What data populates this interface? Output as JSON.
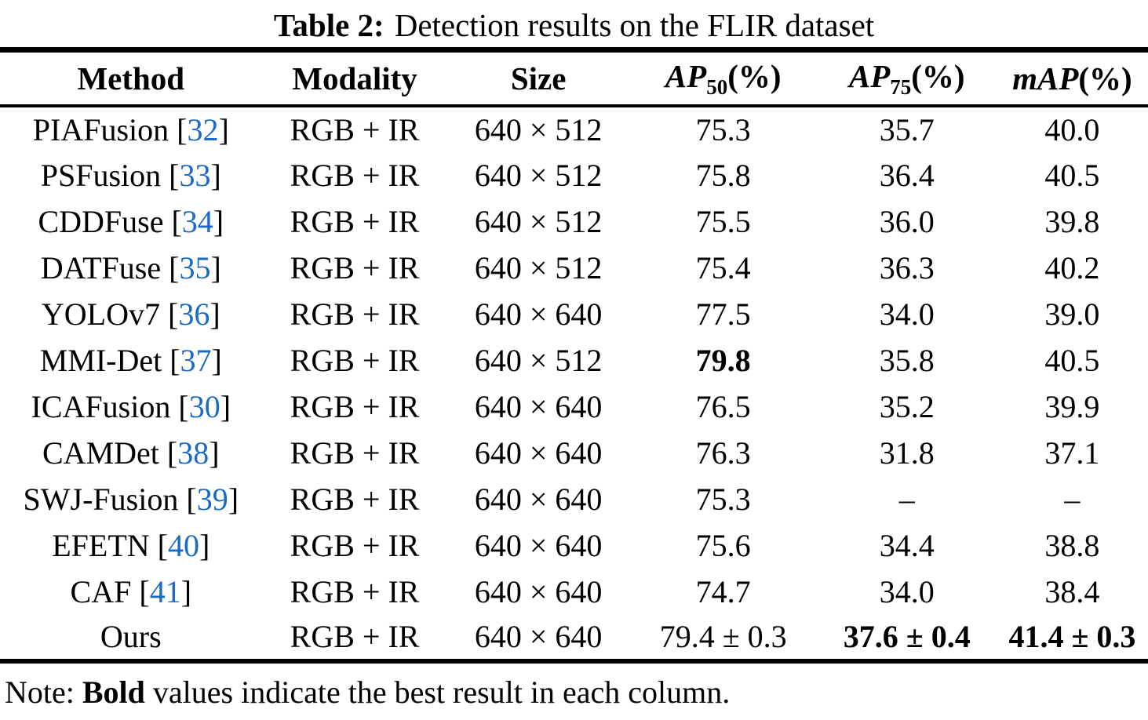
{
  "colors": {
    "citation_blue": "#1a6ac6",
    "text_black": "#000000",
    "background": "#ffffff"
  },
  "caption": {
    "label": "Table 2:",
    "text": "Detection results on the FLIR dataset"
  },
  "table": {
    "citation_brackets": [
      "[",
      "]"
    ],
    "headers": [
      {
        "label": "Method"
      },
      {
        "label": "Modality"
      },
      {
        "label": "Size"
      },
      {
        "label": "AP",
        "sub": "50",
        "suffix": "(%)"
      },
      {
        "label": "AP",
        "sub": "75",
        "suffix": "(%)"
      },
      {
        "label": "mAP",
        "suffix": "(%)"
      }
    ],
    "rows": [
      {
        "method": "PIAFusion",
        "cite": "32",
        "modality": "RGB + IR",
        "size": "640 × 512",
        "ap50": "75.3",
        "ap75": "35.7",
        "map": "40.0"
      },
      {
        "method": "PSFusion",
        "cite": "33",
        "modality": "RGB + IR",
        "size": "640 × 512",
        "ap50": "75.8",
        "ap75": "36.4",
        "map": "40.5"
      },
      {
        "method": "CDDFuse",
        "cite": "34",
        "modality": "RGB + IR",
        "size": "640 × 512",
        "ap50": "75.5",
        "ap75": "36.0",
        "map": "39.8"
      },
      {
        "method": "DATFuse",
        "cite": "35",
        "modality": "RGB + IR",
        "size": "640 × 512",
        "ap50": "75.4",
        "ap75": "36.3",
        "map": "40.2"
      },
      {
        "method": "YOLOv7",
        "cite": "36",
        "modality": "RGB + IR",
        "size": "640 × 640",
        "ap50": "77.5",
        "ap75": "34.0",
        "map": "39.0"
      },
      {
        "method": "MMI-Det",
        "cite": "37",
        "modality": "RGB + IR",
        "size": "640 × 512",
        "ap50": "79.8",
        "ap50_bold": true,
        "ap75": "35.8",
        "map": "40.5"
      },
      {
        "method": "ICAFusion",
        "cite": "30",
        "modality": "RGB + IR",
        "size": "640 × 640",
        "ap50": "76.5",
        "ap75": "35.2",
        "map": "39.9"
      },
      {
        "method": "CAMDet",
        "cite": "38",
        "modality": "RGB + IR",
        "size": "640 × 640",
        "ap50": "76.3",
        "ap75": "31.8",
        "map": "37.1"
      },
      {
        "method": "SWJ-Fusion",
        "cite": "39",
        "modality": "RGB + IR",
        "size": "640 × 640",
        "ap50": "75.3",
        "ap75": "–",
        "map": "–"
      },
      {
        "method": "EFETN",
        "cite": "40",
        "modality": "RGB + IR",
        "size": "640 × 640",
        "ap50": "75.6",
        "ap75": "34.4",
        "map": "38.8"
      },
      {
        "method": "CAF",
        "cite": "41",
        "modality": "RGB + IR",
        "size": "640 × 640",
        "ap50": "74.7",
        "ap75": "34.0",
        "map": "38.4"
      },
      {
        "method": "Ours",
        "modality": "RGB + IR",
        "size": "640 × 640",
        "ap50": "79.4 ± 0.3",
        "ap75": "37.6 ± 0.4",
        "ap75_bold": true,
        "map": "41.4 ± 0.3",
        "map_bold": true
      }
    ]
  },
  "note": {
    "prefix": "Note:",
    "bold_word": "Bold",
    "rest": "values indicate the best result in each column."
  }
}
